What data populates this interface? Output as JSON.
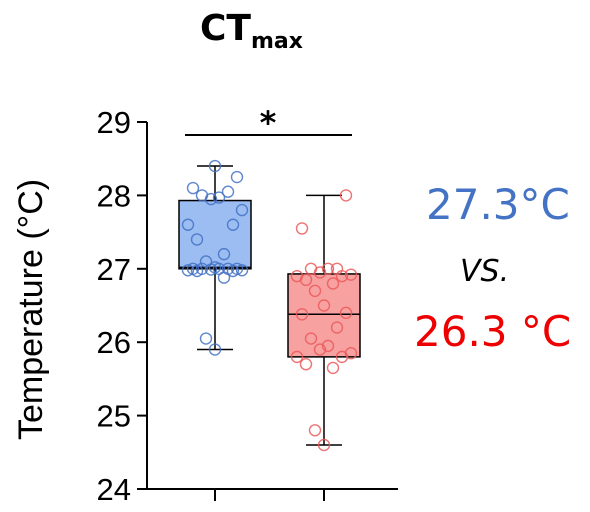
{
  "chart_data": {
    "type": "box",
    "title_main": "CT",
    "title_sub": "max",
    "ylabel": "Temperature (°C)",
    "xlabel": "",
    "ylim": [
      24,
      29
    ],
    "yticks": [
      "24",
      "25",
      "26",
      "27",
      "28",
      "29"
    ],
    "significance": "*",
    "series": [
      {
        "color": "#4472C4",
        "fill": "#9BBDF2",
        "whisker_low": 25.9,
        "q1": 27.0,
        "median": 27.02,
        "q3": 27.93,
        "whisker_high": 28.4,
        "points": [
          25.9,
          26.05,
          26.88,
          26.97,
          26.97,
          26.98,
          26.98,
          26.99,
          27.0,
          27.0,
          27.0,
          27.0,
          27.0,
          27.02,
          27.1,
          27.2,
          27.4,
          27.6,
          27.6,
          27.8,
          27.95,
          27.97,
          28.0,
          28.05,
          28.1,
          28.25,
          28.4
        ]
      },
      {
        "color": "#EB5A5A",
        "fill": "#F7A1A1",
        "whisker_low": 24.6,
        "q1": 25.8,
        "median": 26.38,
        "q3": 26.93,
        "whisker_high": 28.0,
        "points": [
          24.6,
          24.8,
          25.65,
          25.7,
          25.8,
          25.8,
          25.85,
          25.9,
          25.95,
          26.05,
          26.2,
          26.38,
          26.4,
          26.5,
          26.7,
          26.8,
          26.85,
          26.9,
          26.9,
          26.92,
          26.95,
          27.0,
          27.0,
          27.0,
          27.55,
          28.0
        ]
      }
    ]
  },
  "annotations": {
    "group1_value": "27.3°C",
    "vs_label": "VS.",
    "group2_value": "26.3 °C",
    "group1_color": "#4472C4",
    "group2_color": "#EE0000"
  }
}
